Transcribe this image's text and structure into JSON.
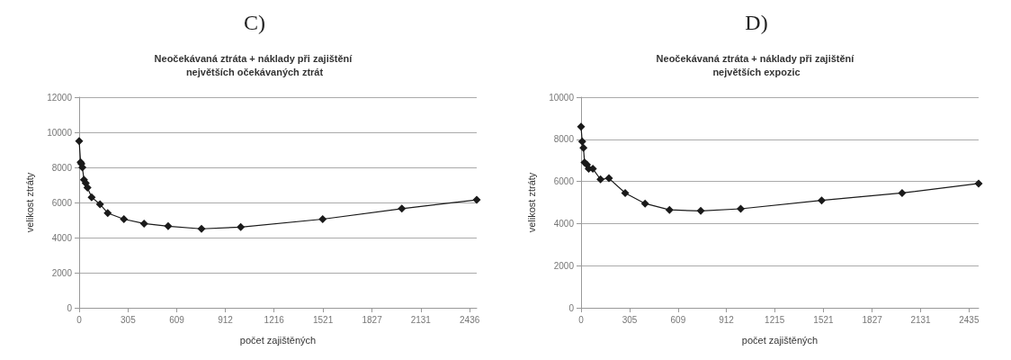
{
  "chart_data": [
    {
      "type": "line",
      "title": "C)",
      "subtitle": "Neočekávaná ztráta + náklady při zajištění největších očekávaných ztrát",
      "xlabel": "počet zajištěných",
      "ylabel": "velikost ztráty",
      "x": [
        0,
        9,
        14,
        20,
        30,
        41,
        52,
        78,
        130,
        178,
        279,
        405,
        555,
        763,
        1008,
        1519,
        2013,
        2480
      ],
      "series": [
        {
          "color": "#1a1a1a",
          "values": [
            9500,
            8300,
            8200,
            8000,
            7300,
            7100,
            6850,
            6300,
            5900,
            5400,
            5050,
            4800,
            4650,
            4500,
            4600,
            5050,
            5650,
            6150
          ]
        }
      ],
      "xlim": [
        0,
        2480
      ],
      "xticks": [
        0,
        305,
        609,
        912,
        1216,
        1521,
        1827,
        2131,
        2436
      ],
      "ylim": [
        0,
        12000
      ],
      "yticks": [
        0,
        2000,
        4000,
        6000,
        8000,
        10000,
        12000
      ],
      "grid": "y",
      "marker": "diamond",
      "line_style": "solid"
    },
    {
      "type": "line",
      "title": "D)",
      "subtitle": "Neočekávaná ztráta + náklady při zajištění největších expozic",
      "xlabel": "počet zajištěných",
      "ylabel": "velikost ztráty",
      "x": [
        0,
        7,
        15,
        22,
        37,
        48,
        74,
        122,
        175,
        277,
        402,
        555,
        751,
        1002,
        1510,
        2015,
        2495
      ],
      "series": [
        {
          "color": "#1a1a1a",
          "values": [
            8600,
            7900,
            7600,
            6900,
            6800,
            6600,
            6600,
            6100,
            6150,
            5450,
            4950,
            4650,
            4600,
            4700,
            5100,
            5450,
            5900
          ]
        }
      ],
      "xlim": [
        0,
        2495
      ],
      "xticks": [
        0,
        305,
        609,
        912,
        1215,
        1521,
        1827,
        2131,
        2435
      ],
      "ylim": [
        0,
        10000
      ],
      "yticks": [
        0,
        2000,
        4000,
        6000,
        8000,
        10000
      ],
      "grid": "y",
      "marker": "diamond",
      "line_style": "solid"
    }
  ]
}
